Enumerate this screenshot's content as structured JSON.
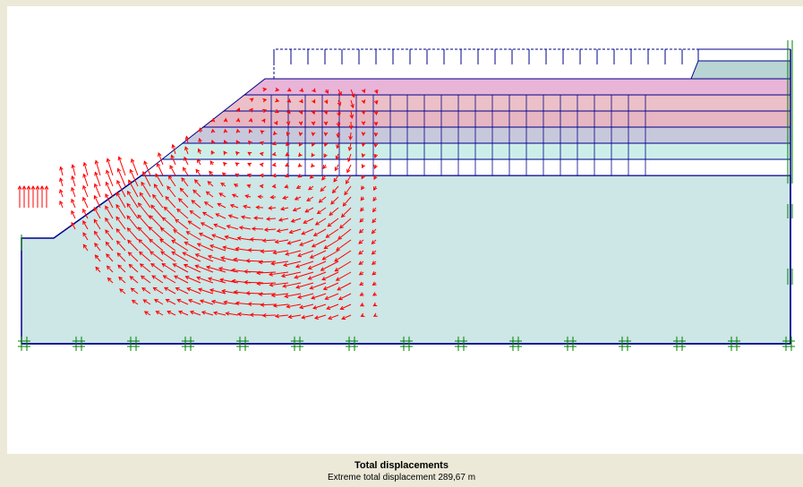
{
  "caption": {
    "title": "Total displacements",
    "subtitle": "Extreme total displacement 289,67 m"
  },
  "colors": {
    "background": "#ece9d8",
    "canvas": "#ffffff",
    "mesh_line": "#00008b",
    "vector": "#ff0000",
    "fixity": "#008000",
    "soil_foundation": "#cde6e6",
    "soil_layer_pink": "#e8b4d8",
    "soil_layer_rose": "#ecc0c8",
    "soil_layer_mauve": "#e6b6c2",
    "soil_layer_grey": "#c8c8dc",
    "soil_layer_cyan": "#cdeee8",
    "soil_layer_white": "#ffffff",
    "soil_wedge": "#b8d4d4"
  },
  "icons": {
    "load_marker": "distributed-load-arrow",
    "fixity_marker": "fixity-hash-icon"
  }
}
